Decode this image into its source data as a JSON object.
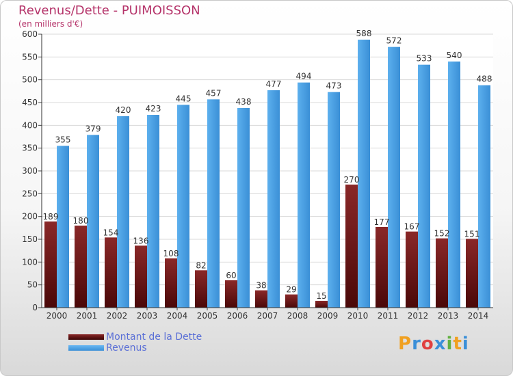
{
  "title": "Revenus/Dette - PUIMOISSON",
  "subtitle": "(en milliers d'€)",
  "colors": {
    "dette": "#7a1a1a",
    "revenus": "#4a9ee0",
    "title": "#b5346a",
    "legend_text": "#5a6fd6"
  },
  "chart_data": {
    "type": "bar",
    "categories": [
      "2000",
      "2001",
      "2002",
      "2003",
      "2004",
      "2005",
      "2006",
      "2007",
      "2008",
      "2009",
      "2010",
      "2011",
      "2012",
      "2013",
      "2014"
    ],
    "series": [
      {
        "name": "Montant de la Dette",
        "values": [
          189,
          180,
          154,
          136,
          108,
          82,
          60,
          38,
          29,
          15,
          270,
          177,
          167,
          152,
          151
        ]
      },
      {
        "name": "Revenus",
        "values": [
          355,
          379,
          420,
          423,
          445,
          457,
          438,
          477,
          494,
          473,
          588,
          572,
          533,
          540,
          488
        ]
      }
    ],
    "ylim": [
      0,
      600
    ],
    "yticks": [
      0,
      50,
      100,
      150,
      200,
      250,
      300,
      350,
      400,
      450,
      500,
      550,
      600
    ],
    "grid": true,
    "legend": "bottom-left"
  },
  "legend": {
    "dette_label": "Montant de la Dette",
    "revenus_label": "Revenus"
  },
  "logo": {
    "letters": [
      "P",
      "r",
      "o",
      "x",
      "i",
      "t",
      "i"
    ],
    "colors": [
      "#f0a020",
      "#3a8fd8",
      "#e04040",
      "#3a8fd8",
      "#60b040",
      "#f0a020",
      "#3a8fd8"
    ]
  }
}
